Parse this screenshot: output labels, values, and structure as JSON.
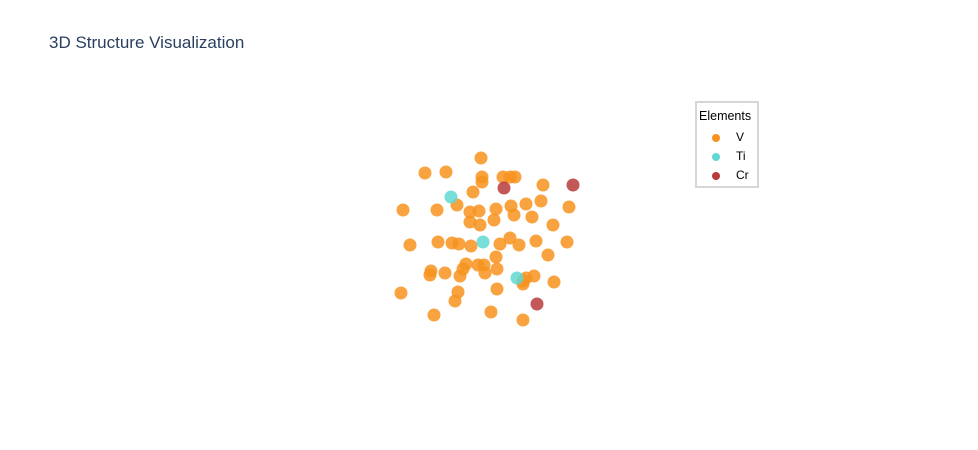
{
  "title": "3D Structure Visualization",
  "legend": {
    "title": "Elements",
    "items": [
      {
        "label": "V",
        "color": "#f7931e"
      },
      {
        "label": "Ti",
        "color": "#5fd8d3"
      },
      {
        "label": "Cr",
        "color": "#b73b3b"
      }
    ]
  },
  "chart_data": {
    "type": "scatter",
    "title": "3D Structure Visualization",
    "projection": "3d",
    "axes_visible": false,
    "grid": false,
    "legend_placement": "top-right",
    "legend_title": "Elements",
    "note_axes": "no tick labels printed; values are projected positions read relative to the plot center",
    "series": [
      {
        "name": "V",
        "color": "#f7931e",
        "points": [
          [
            -56,
            -68
          ],
          [
            -35,
            -69
          ],
          [
            0,
            -83
          ],
          [
            1,
            -64
          ],
          [
            1,
            -59
          ],
          [
            22,
            -64
          ],
          [
            29,
            -64
          ],
          [
            34,
            -64
          ],
          [
            62,
            -56
          ],
          [
            -78,
            -31
          ],
          [
            -44,
            -31
          ],
          [
            -24,
            -36
          ],
          [
            -8,
            -49
          ],
          [
            -11,
            -29
          ],
          [
            -2,
            -30
          ],
          [
            15,
            -32
          ],
          [
            30,
            -35
          ],
          [
            45,
            -37
          ],
          [
            60,
            -40
          ],
          [
            88,
            -34
          ],
          [
            -11,
            -19
          ],
          [
            -1,
            -16
          ],
          [
            13,
            -21
          ],
          [
            33,
            -26
          ],
          [
            51,
            -24
          ],
          [
            72,
            -16
          ],
          [
            -71,
            4
          ],
          [
            -43,
            1
          ],
          [
            -29,
            2
          ],
          [
            -22,
            3
          ],
          [
            -10,
            5
          ],
          [
            19,
            3
          ],
          [
            29,
            -3
          ],
          [
            38,
            4
          ],
          [
            55,
            0
          ],
          [
            86,
            1
          ],
          [
            -50,
            30
          ],
          [
            -51,
            34
          ],
          [
            -36,
            32
          ],
          [
            -18,
            28
          ],
          [
            -15,
            23
          ],
          [
            -3,
            24
          ],
          [
            3,
            24
          ],
          [
            15,
            16
          ],
          [
            16,
            28
          ],
          [
            4,
            32
          ],
          [
            -21,
            35
          ],
          [
            67,
            14
          ],
          [
            53,
            35
          ],
          [
            45,
            37
          ],
          [
            42,
            40
          ],
          [
            73,
            41
          ],
          [
            -80,
            52
          ],
          [
            -23,
            51
          ],
          [
            -26,
            60
          ],
          [
            16,
            48
          ],
          [
            42,
            43
          ],
          [
            10,
            71
          ],
          [
            -47,
            74
          ],
          [
            42,
            79
          ]
        ]
      },
      {
        "name": "Ti",
        "color": "#5fd8d3",
        "points": [
          [
            -30,
            -44
          ],
          [
            2,
            1
          ],
          [
            36,
            37
          ]
        ]
      },
      {
        "name": "Cr",
        "color": "#b73b3b",
        "points": [
          [
            23,
            -53
          ],
          [
            92,
            -56
          ],
          [
            56,
            63
          ]
        ]
      }
    ]
  }
}
